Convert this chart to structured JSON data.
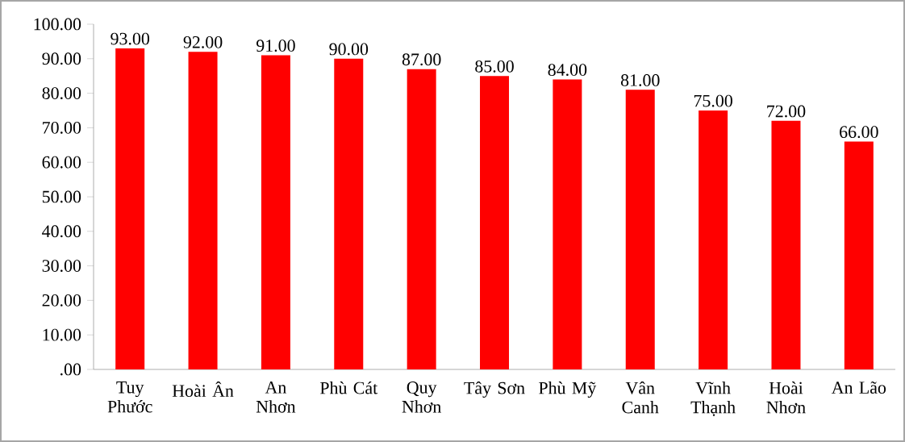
{
  "chart_data": {
    "type": "bar",
    "categories": [
      "Tuy Phước",
      "Hoài Ân",
      "An Nhơn",
      "Phù Cát",
      "Quy Nhơn",
      "Tây Sơn",
      "Phù Mỹ",
      "Vân Canh",
      "Vĩnh Thạnh",
      "Hoài Nhơn",
      "An Lão"
    ],
    "values": [
      93,
      92,
      91,
      90,
      87,
      85,
      84,
      81,
      75,
      72,
      66
    ],
    "value_labels": [
      "93.00",
      "92.00",
      "91.00",
      "90.00",
      "87.00",
      "85.00",
      "84.00",
      "81.00",
      "75.00",
      "72.00",
      "66.00"
    ],
    "color": "#ff0000",
    "ylim": [
      0,
      100
    ],
    "yticks": [
      {
        "value": 0,
        "label": ".00"
      },
      {
        "value": 10,
        "label": "10.00"
      },
      {
        "value": 20,
        "label": "20.00"
      },
      {
        "value": 30,
        "label": "30.00"
      },
      {
        "value": 40,
        "label": "40.00"
      },
      {
        "value": 50,
        "label": "50.00"
      },
      {
        "value": 60,
        "label": "60.00"
      },
      {
        "value": 70,
        "label": "70.00"
      },
      {
        "value": 80,
        "label": "80.00"
      },
      {
        "value": 90,
        "label": "90.00"
      },
      {
        "value": 100,
        "label": "100.00"
      }
    ],
    "grid": false
  }
}
